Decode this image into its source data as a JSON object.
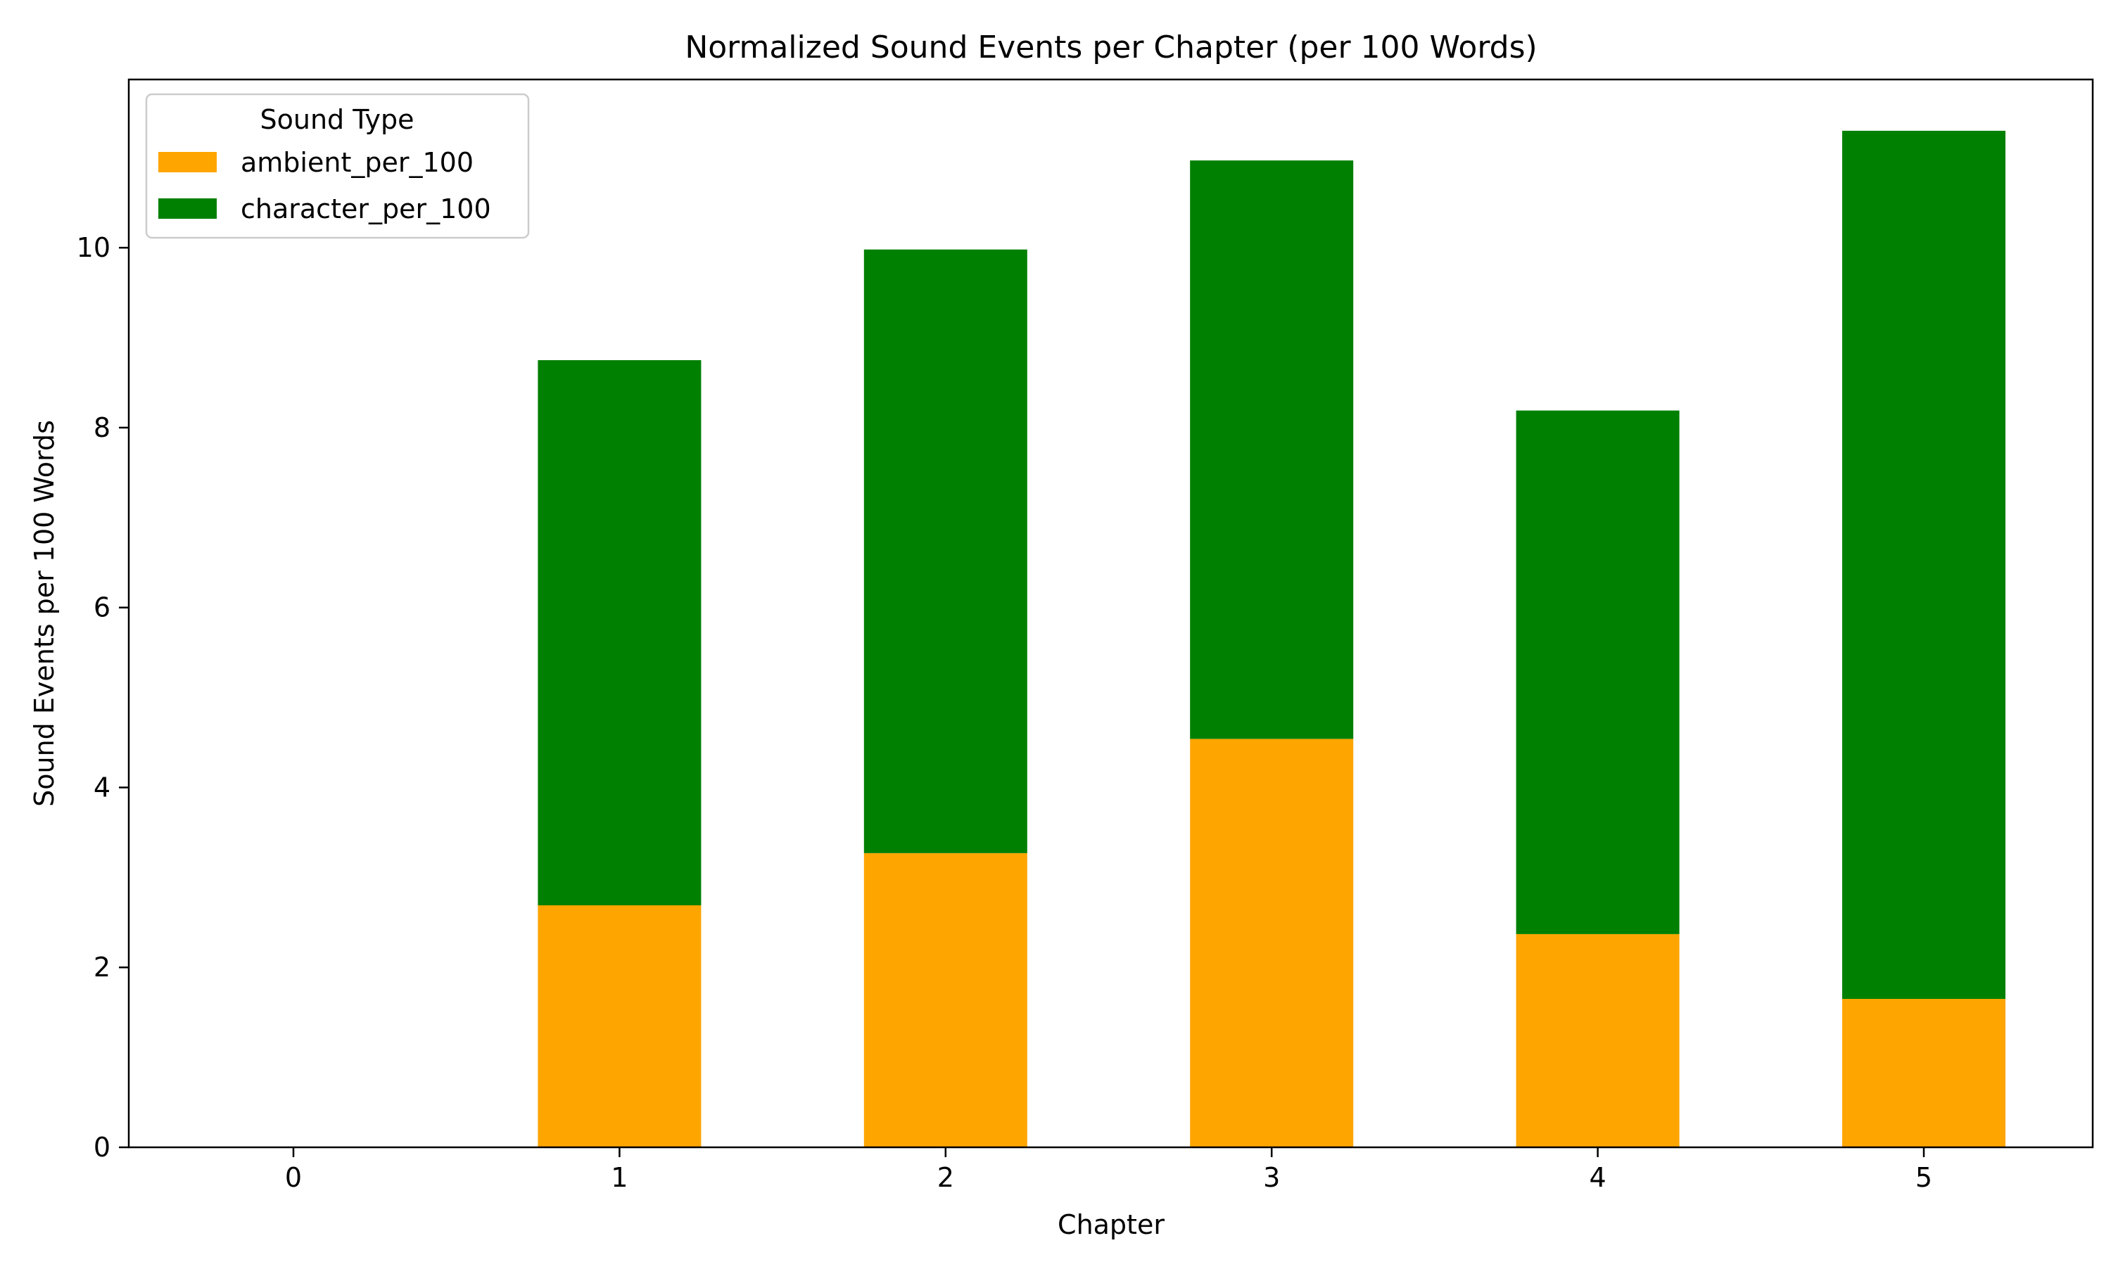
{
  "chart_data": {
    "type": "bar",
    "stacked": true,
    "title": "Normalized Sound Events per Chapter (per 100 Words)",
    "xlabel": "Chapter",
    "ylabel": "Sound Events per 100 Words",
    "categories": [
      "0",
      "1",
      "2",
      "3",
      "4",
      "5"
    ],
    "ylim": [
      0,
      11.87
    ],
    "yticks": [
      0,
      2,
      4,
      6,
      8,
      10
    ],
    "grid": false,
    "legend": {
      "title": "Sound Type",
      "placement": "top-left"
    },
    "series": [
      {
        "name": "ambient_per_100",
        "color": "#ffa500",
        "values": [
          0,
          2.69,
          3.27,
          4.54,
          2.37,
          1.65
        ]
      },
      {
        "name": "character_per_100",
        "color": "#008000",
        "values": [
          0,
          6.06,
          6.71,
          6.43,
          5.82,
          9.65
        ]
      }
    ]
  }
}
